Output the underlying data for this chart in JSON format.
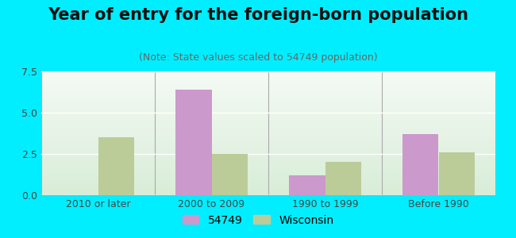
{
  "title": "Year of entry for the foreign-born population",
  "subtitle": "(Note: State values scaled to 54749 population)",
  "categories": [
    "2010 or later",
    "2000 to 2009",
    "1990 to 1999",
    "Before 1990"
  ],
  "series_54749": [
    0,
    6.4,
    1.2,
    3.7
  ],
  "series_wisconsin": [
    3.5,
    2.5,
    2.0,
    2.6
  ],
  "color_54749": "#cc99cc",
  "color_wisconsin": "#bbcc99",
  "ylim": [
    0,
    7.5
  ],
  "yticks": [
    0,
    2.5,
    5,
    7.5
  ],
  "legend_54749": "54749",
  "legend_wisconsin": "Wisconsin",
  "bg_outer": "#00eeff",
  "bar_width": 0.32,
  "title_fontsize": 15,
  "subtitle_fontsize": 9,
  "tick_fontsize": 9,
  "legend_fontsize": 10
}
